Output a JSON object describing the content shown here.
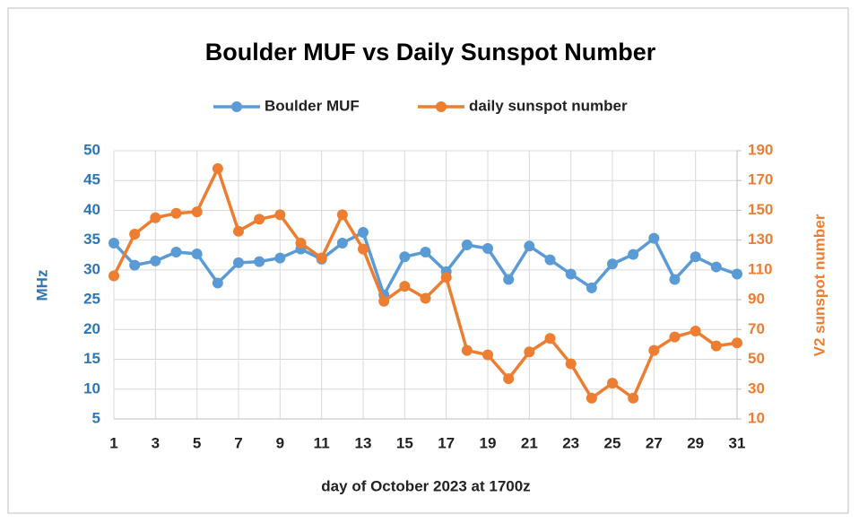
{
  "chart_data": {
    "type": "line",
    "title": "Boulder MUF vs Daily Sunspot Number",
    "xlabel": "day of October 2023 at 1700z",
    "ylabel": "MHz",
    "y2label": "V2 sunspot number",
    "x": [
      1,
      2,
      3,
      4,
      5,
      6,
      7,
      8,
      9,
      10,
      11,
      12,
      13,
      14,
      15,
      16,
      17,
      18,
      19,
      20,
      21,
      22,
      23,
      24,
      25,
      26,
      27,
      28,
      29,
      30,
      31
    ],
    "xlim": [
      1,
      31
    ],
    "xticks": [
      1,
      3,
      5,
      7,
      9,
      11,
      13,
      15,
      17,
      19,
      21,
      23,
      25,
      27,
      29,
      31
    ],
    "ylim": [
      5,
      50
    ],
    "yticks": [
      5,
      10,
      15,
      20,
      25,
      30,
      35,
      40,
      45,
      50
    ],
    "y2lim": [
      10,
      190
    ],
    "y2ticks": [
      10,
      30,
      50,
      70,
      90,
      110,
      130,
      150,
      170,
      190
    ],
    "grid": true,
    "legend": "top",
    "series": [
      {
        "name": "Boulder MUF",
        "color": "#5b9bd5",
        "values": [
          34.5,
          30.8,
          31.5,
          33,
          32.7,
          27.8,
          31.2,
          31.4,
          32,
          33.5,
          31.8,
          34.5,
          36.3,
          25.8,
          32.2,
          33,
          29.7,
          34.2,
          33.6,
          28.4,
          34,
          31.7,
          29.3,
          27,
          31,
          32.6,
          35.3,
          28.4,
          32.2,
          30.5,
          29.3
        ]
      },
      {
        "name": "daily sunspot number",
        "color": "#ed7d31",
        "axis": "y2",
        "values": [
          106,
          134,
          145,
          148,
          149,
          178,
          136,
          144,
          147,
          128,
          118,
          147,
          124,
          89,
          99,
          91,
          105,
          56,
          53,
          37,
          55,
          64,
          47,
          24,
          34,
          24,
          56,
          65,
          69,
          59,
          61
        ]
      }
    ]
  }
}
